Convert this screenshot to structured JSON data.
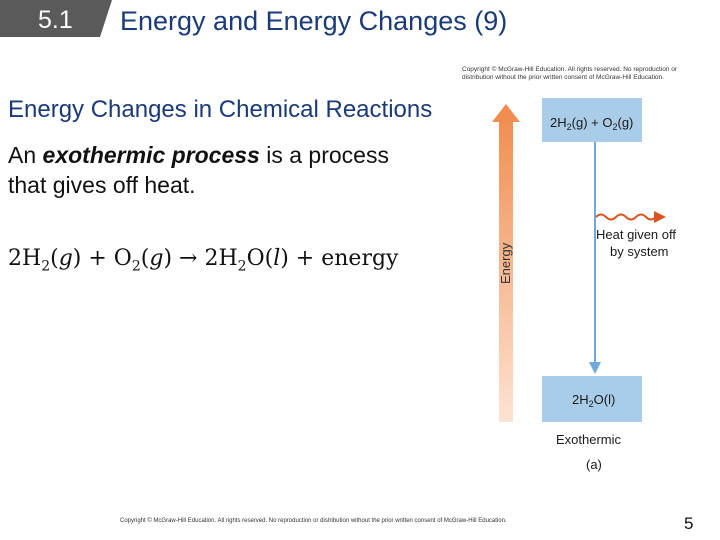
{
  "header": {
    "section_number": "5.1",
    "title": "Energy and Energy Changes (9)"
  },
  "subtitle": "Energy Changes in Chemical Reactions",
  "body": {
    "kw": "exothermic process",
    "rest": " is a process that gives off heat.",
    "lead": "An "
  },
  "equation": {
    "c1": "2H",
    "s1": "2",
    "p1": "(",
    "st1": "g",
    "p1b": ") + O",
    "s2": "2",
    "p2": "(",
    "st2": "g",
    "p2b": ") → 2H",
    "s3": "2",
    "p3": "O(",
    "st3": "l",
    "p3b": ") + energy"
  },
  "figure": {
    "copyright_line1": "Copyright © McGraw-Hill Education. All rights reserved. No reproduction or",
    "copyright_line2": "distribution without the prior written consent of McGraw-Hill Education.",
    "axis_label": "Energy",
    "top_box": {
      "a": "2H",
      "b": "2",
      "c": "(g) + O",
      "d": "2",
      "e": "(g)"
    },
    "bottom_box": {
      "a": "2H",
      "b": "2",
      "c": "O(l)"
    },
    "heat_line1": "Heat given off",
    "heat_line2": "by system",
    "caption": "Exothermic",
    "panel_label": "(a)",
    "colors": {
      "box": "#a9cce8",
      "arrow": "#f08a4b",
      "down_arrow": "#6fa8dc",
      "heat": "#d9541e"
    }
  },
  "footer": "Copyright © McGraw-Hill Education. All rights reserved. No reproduction or distribution without the prior written consent of McGraw-Hill Education.",
  "page_number": "5"
}
